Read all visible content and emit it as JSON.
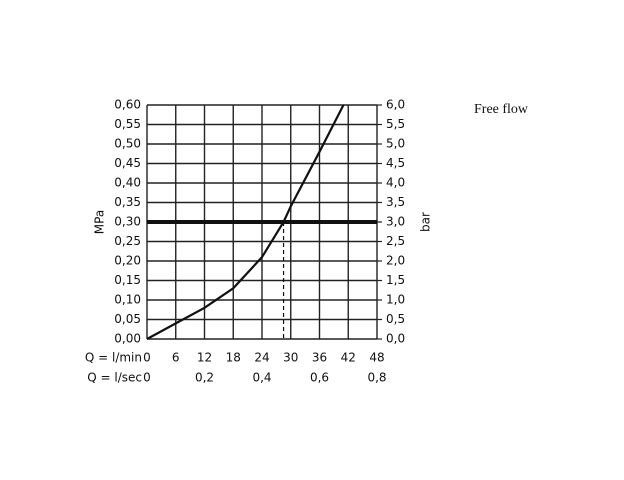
{
  "chart_data": {
    "type": "line",
    "annotation": "Free flow",
    "ylabel": "MPa",
    "y2label": "bar",
    "xlabel": "Q = l/min",
    "x2label": "Q = l/sec",
    "x": [
      0,
      6,
      12,
      18,
      24,
      28.5,
      30,
      36,
      41
    ],
    "series": [
      {
        "color": "#111111",
        "values": [
          0,
          0.04,
          0.08,
          0.13,
          0.21,
          0.3,
          0.34,
          0.48,
          0.6
        ]
      }
    ],
    "xlim": [
      0,
      48
    ],
    "xticks": [
      0,
      6,
      12,
      18,
      24,
      30,
      36,
      42,
      48
    ],
    "x2lim": [
      0,
      0.8
    ],
    "x2ticks": [
      0,
      {
        "value": 0.2,
        "label": "0,2"
      },
      {
        "value": 0.4,
        "label": "0,4"
      },
      {
        "value": 0.6,
        "label": "0,6"
      },
      {
        "value": 0.8,
        "label": "0,8"
      }
    ],
    "ylim": [
      0,
      0.6
    ],
    "yticks": [
      {
        "value": 0,
        "label": "0,00"
      },
      {
        "value": 0.05,
        "label": "0,05"
      },
      {
        "value": 0.1,
        "label": "0,10"
      },
      {
        "value": 0.15,
        "label": "0,15"
      },
      {
        "value": 0.2,
        "label": "0,20"
      },
      {
        "value": 0.25,
        "label": "0,25"
      },
      {
        "value": 0.3,
        "label": "0,30"
      },
      {
        "value": 0.35,
        "label": "0,35"
      },
      {
        "value": 0.4,
        "label": "0,40"
      },
      {
        "value": 0.45,
        "label": "0,45"
      },
      {
        "value": 0.5,
        "label": "0,50"
      },
      {
        "value": 0.55,
        "label": "0,55"
      },
      {
        "value": 0.6,
        "label": "0,60"
      }
    ],
    "y2lim": [
      0,
      6
    ],
    "y2ticks": [
      {
        "value": 0,
        "label": "0,0"
      },
      {
        "value": 0.5,
        "label": "0,5"
      },
      {
        "value": 1,
        "label": "1,0"
      },
      {
        "value": 1.5,
        "label": "1,5"
      },
      {
        "value": 2,
        "label": "2,0"
      },
      {
        "value": 2.5,
        "label": "2,5"
      },
      {
        "value": 3,
        "label": "3,0"
      },
      {
        "value": 3.5,
        "label": "3,5"
      },
      {
        "value": 4,
        "label": "4,0"
      },
      {
        "value": 4.5,
        "label": "4,5"
      },
      {
        "value": 5,
        "label": "5,0"
      },
      {
        "value": 5.5,
        "label": "5,5"
      },
      {
        "value": 6,
        "label": "6,0"
      }
    ],
    "hline": 0.3,
    "vline": 28.5,
    "grid": true
  }
}
